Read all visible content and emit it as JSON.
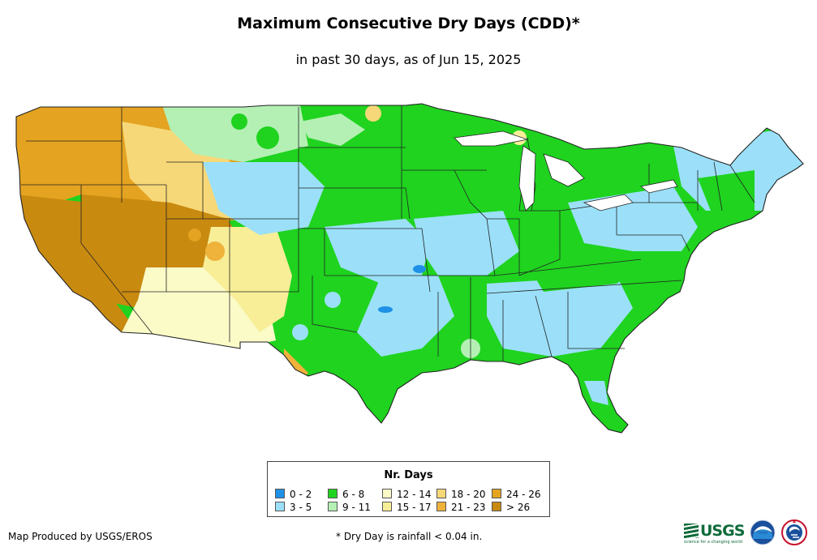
{
  "title": "Maximum Consecutive Dry Days (CDD)*",
  "subtitle": "in past 30 days, as of Jun 15, 2025",
  "legend": {
    "title": "Nr. Days",
    "items": [
      {
        "label": "0 - 2",
        "color": "#1e90e6"
      },
      {
        "label": "3 - 5",
        "color": "#9be0f8"
      },
      {
        "label": "6 - 8",
        "color": "#1fd31f"
      },
      {
        "label": "9 - 11",
        "color": "#b4f0b4"
      },
      {
        "label": "12 - 14",
        "color": "#fbfbc8"
      },
      {
        "label": "15 - 17",
        "color": "#f8ee98"
      },
      {
        "label": "18 - 20",
        "color": "#f7d878"
      },
      {
        "label": "21 - 23",
        "color": "#efb23a"
      },
      {
        "label": "24 - 26",
        "color": "#e4a320"
      },
      {
        "label": "> 26",
        "color": "#c98a10"
      }
    ]
  },
  "footer": {
    "credit": "Map Produced by USGS/EROS",
    "footnote": "* Dry Day is rainfall < 0.04 in."
  },
  "logos": {
    "usgs": "USGS",
    "usgs_tagline": "science for a changing world",
    "noaa": "noaa"
  },
  "map": {
    "regions": [
      {
        "id": "pacific-northwest",
        "category": "24 - 26"
      },
      {
        "id": "idaho-montana",
        "category": "18 - 20"
      },
      {
        "id": "great-basin",
        "category": "> 26"
      },
      {
        "id": "california",
        "category": "> 26"
      },
      {
        "id": "desert-southwest",
        "category": "12 - 14"
      },
      {
        "id": "four-corners",
        "category": "15 - 17"
      },
      {
        "id": "northern-plains",
        "category": "6 - 8"
      },
      {
        "id": "wyoming-colorado",
        "category": "3 - 5"
      },
      {
        "id": "northern-rockies",
        "category": "9 - 11"
      },
      {
        "id": "southern-plains",
        "category": "6 - 8"
      },
      {
        "id": "texas-coast",
        "category": "3 - 5"
      },
      {
        "id": "midwest",
        "category": "6 - 8"
      },
      {
        "id": "mid-mississippi",
        "category": "3 - 5"
      },
      {
        "id": "southeast",
        "category": "3 - 5"
      },
      {
        "id": "appalachia",
        "category": "6 - 8"
      },
      {
        "id": "florida",
        "category": "6 - 8"
      },
      {
        "id": "northeast",
        "category": "3 - 5"
      },
      {
        "id": "new-england",
        "category": "6 - 8"
      },
      {
        "id": "oklahoma-wet",
        "category": "0 - 2"
      },
      {
        "id": "kansas-wet",
        "category": "0 - 2"
      }
    ]
  }
}
